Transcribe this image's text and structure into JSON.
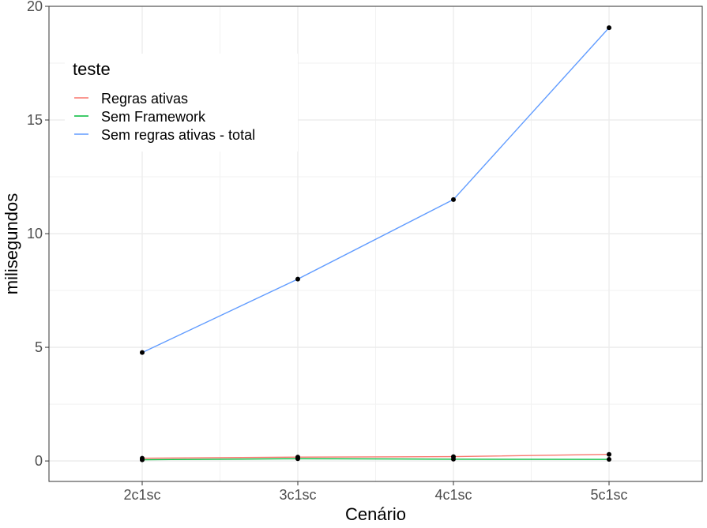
{
  "chart_data": {
    "type": "line",
    "xlabel": "Cenário",
    "ylabel": "milisegundos",
    "categories": [
      "2c1sc",
      "3c1sc",
      "4c1sc",
      "5c1sc"
    ],
    "ylim": [
      -0.9,
      20
    ],
    "y_ticks": [
      0,
      5,
      10,
      15,
      20
    ],
    "y_tick_labels": [
      "0",
      "5",
      "10",
      "15",
      "20"
    ],
    "grid": true,
    "legend": {
      "title": "teste",
      "placement": "top-left inside"
    },
    "series": [
      {
        "name": "Regras ativas",
        "color": "#F8766D",
        "values": [
          0.12,
          0.17,
          0.19,
          0.29
        ]
      },
      {
        "name": "Sem Framework",
        "color": "#00BA38",
        "values": [
          0.05,
          0.1,
          0.08,
          0.07
        ]
      },
      {
        "name": "Sem regras ativas - total",
        "color": "#619CFF",
        "values": [
          4.77,
          8.0,
          11.5,
          19.06
        ]
      }
    ],
    "point_color": "#000000"
  }
}
